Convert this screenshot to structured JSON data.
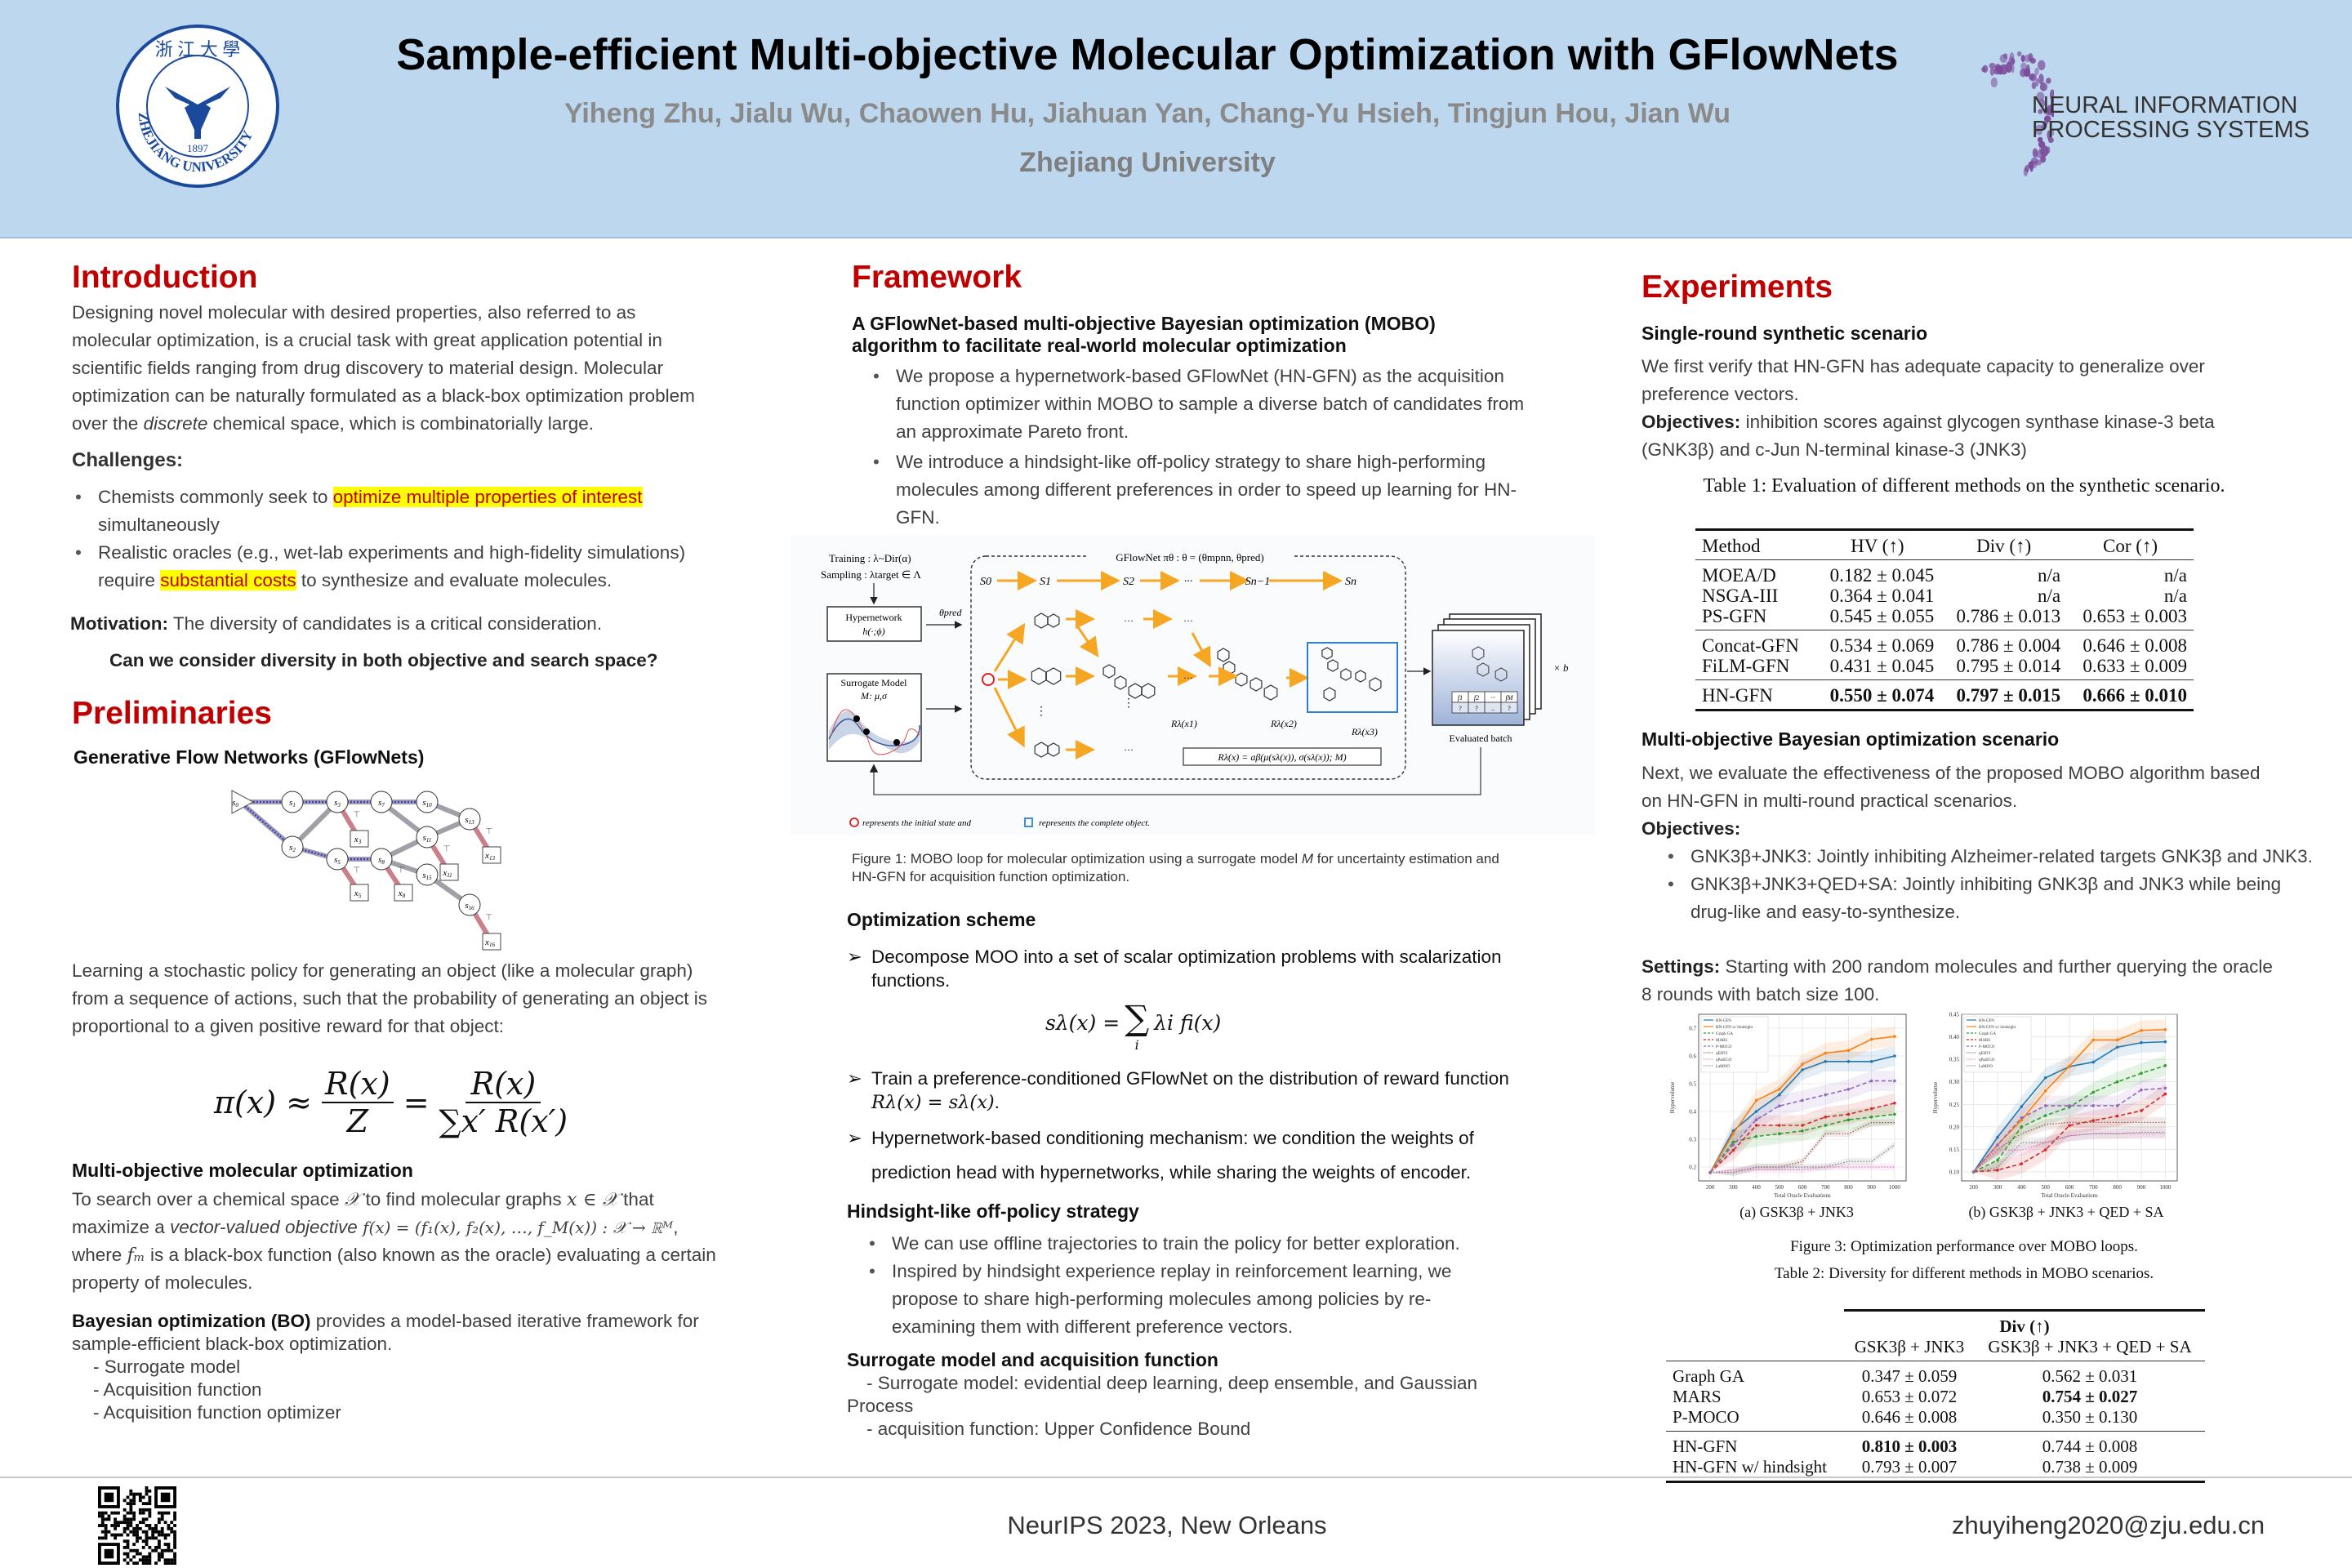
{
  "header": {
    "title": "Sample-efficient Multi-objective Molecular Optimization with GFlowNets",
    "authors": "Yiheng Zhu, Jialu Wu, Chaowen Hu, Jiahuan Yan, Chang-Yu Hsieh, Tingjun Hou, Jian Wu",
    "affiliation": "Zhejiang University",
    "left_logo": {
      "text": "ZHEJIANG UNIVERSITY",
      "year": "1897",
      "color": "#1b4a9c"
    },
    "right_logo": {
      "line1": "NEURAL INFORMATION",
      "line2": "PROCESSING SYSTEMS",
      "color": "#7b4c9a"
    },
    "background": "#bdd7ee"
  },
  "colors": {
    "section_heading": "#c00000",
    "highlight": "#ffff00"
  },
  "introduction": {
    "heading": "Introduction",
    "p1_a": "Designing novel molecular with desired properties, also referred to as molecular optimization, is a crucial task with great application potential in scientific fields ranging from drug discovery to material design. Molecular optimization can be naturally formulated as a black-box optimization problem over the ",
    "p1_em": "discrete",
    "p1_b": " chemical space, which is combinatorially large.",
    "challenges_label": "Challenges:",
    "bullet1_a": "Chemists commonly seek to ",
    "bullet1_hl": "optimize multiple properties of interest",
    "bullet1_b": " simultaneously",
    "bullet2_a": "Realistic oracles (e.g., wet-lab experiments and high-fidelity simulations) require ",
    "bullet2_hl": "substantial costs",
    "bullet2_b": " to synthesize and evaluate molecules.",
    "motivation_label": "Motivation:",
    "motivation_text": " The diversity of candidates is a critical consideration.",
    "question": "Can we consider diversity in both objective and search space?"
  },
  "preliminaries": {
    "heading": "Preliminaries",
    "gfn_heading": "Generative Flow Networks (GFlowNets)",
    "diagram": {
      "states": [
        "s0",
        "s1",
        "s2",
        "s3",
        "s5",
        "s7",
        "s8",
        "s10",
        "s11",
        "s13",
        "s15",
        "s16"
      ],
      "terminals": [
        "x3",
        "x5",
        "x8",
        "x11",
        "x13",
        "x16"
      ],
      "terminal_mark": "⊤"
    },
    "gfn_text": "Learning a stochastic policy for generating an object (like a molecular graph) from a sequence of actions, such that the probability of generating an object is proportional to a given positive reward for that object:",
    "equation": {
      "lhs": "π(x) ≈",
      "frac1_num": "R(x)",
      "frac1_den": "Z",
      "eq": "=",
      "frac2_num": "R(x)",
      "frac2_den": "∑x′ R(x′)"
    },
    "moo_heading": "Multi-objective molecular optimization",
    "moo_a": "To search over a chemical space ",
    "moo_m1": "𝒳",
    "moo_b": " to find molecular graphs ",
    "moo_m2": "x ∈ 𝒳",
    "moo_c": " that maximize a ",
    "moo_em": "vector-valued objective",
    "moo_m3": " f(x) = (f₁(x), f₂(x), …, f_M(x)) : 𝒳 → ℝᴹ",
    "moo_d": ", where ",
    "moo_m4": "fₘ",
    "moo_e": " is a black-box function (also known as the oracle) evaluating a certain property of molecules.",
    "bo_bold": "Bayesian optimization (BO)",
    "bo_text": " provides a model-based iterative framework for sample-efficient black-box optimization.",
    "bo_items": [
      "- Surrogate model",
      "- Acquisition function",
      "- Acquisition function optimizer"
    ]
  },
  "framework": {
    "heading": "Framework",
    "subheading": "A GFlowNet-based multi-objective Bayesian optimization (MOBO) algorithm to facilitate real-world molecular optimization",
    "bullets": [
      "We propose a hypernetwork-based GFlowNet (HN-GFN) as the acquisition function optimizer within MOBO to sample a diverse batch of candidates from an approximate Pareto front.",
      "We introduce a hindsight-like off-policy strategy to share high-performing molecules among different preferences in order to speed up learning for HN-GFN."
    ],
    "figure": {
      "training": "Training : λ~Dir(α)",
      "sampling": "Sampling : λtarget ∈ Λ",
      "hypernetwork": "Hypernetwork",
      "hypernetwork_fn": "h(·;ϕ)",
      "theta_pred": "θpred",
      "surrogate": "Surrogate Model",
      "surrogate_params": "M: μ,σ",
      "gflownet": "GFlowNet πθ : θ = (θmpnn, θpred)",
      "states": [
        "S0",
        "S1",
        "S2",
        "···",
        "Sn−1",
        "Sn"
      ],
      "rewards": [
        "Rλ(x1)",
        "Rλ(x2)",
        "Rλ(x3)"
      ],
      "reward_formula": "Rλ(x) = aβ(μ(sλ(x)), σ(sλ(x)); M)",
      "times_b": "× b",
      "evaluated_batch": "Evaluated batch",
      "batch_header": [
        "f1",
        "f2",
        "···",
        "fM"
      ],
      "batch_values": [
        "?",
        "?",
        "..",
        "?"
      ],
      "dots": "···",
      "vdots": "⋮",
      "legend_a": "represents the initial state and",
      "legend_b": "represents the complete object.",
      "initial_color": "#e02020",
      "complete_color": "#2f7fd0",
      "arrow_color": "#f5a623"
    },
    "caption_a": "Figure 1: MOBO loop for molecular optimization using a surrogate model ",
    "caption_m": "M",
    "caption_b": " for uncertainty estimation and HN-GFN for acquisition function optimization.",
    "opt_heading": "Optimization scheme",
    "opt1": "Decompose MOO into a set of scalar optimization problems with scalarization functions.",
    "opt_eq_lhs": "sλ(x) =",
    "opt_eq_sum": "∑",
    "opt_eq_idx": "i",
    "opt_eq_rhs": "λi fi(x)",
    "opt2_a": "Train a preference-conditioned GFlowNet on the distribution of reward function ",
    "opt2_m": "Rλ(x) = sλ(x)",
    "opt2_b": ".",
    "opt3": "Hypernetwork-based conditioning mechanism: we condition the weights of prediction head with hypernetworks, while sharing the weights of encoder.",
    "hind_heading": "Hindsight-like off-policy strategy",
    "hind_bullets": [
      "We can use offline trajectories to train the policy for better exploration.",
      "Inspired by hindsight experience replay in reinforcement learning, we propose to share high-performing molecules among policies by re-examining them with different preference vectors."
    ],
    "sur_heading": "Surrogate model and acquisition function",
    "sur1": "- Surrogate model: evidential deep learning, deep ensemble, and Gaussian Process",
    "sur2": "- acquisition function: Upper Confidence Bound"
  },
  "experiments": {
    "heading": "Experiments",
    "single_heading": "Single-round synthetic scenario",
    "single_text": "We first verify that HN-GFN has adequate capacity to generalize over preference vectors.",
    "objectives_label": "Objectives:",
    "objectives_text": " inhibition scores against glycogen synthase kinase-3 beta (GNK3β) and c-Jun N-terminal kinase-3 (JNK3)",
    "table1": {
      "caption": "Table 1: Evaluation of different methods on the synthetic scenario.",
      "columns": [
        "Method",
        "HV (↑)",
        "Div (↑)",
        "Cor (↑)"
      ],
      "groups": [
        [
          [
            "MOEA/D",
            "0.182 ± 0.045",
            "n/a",
            "n/a"
          ],
          [
            "NSGA-III",
            "0.364 ± 0.041",
            "n/a",
            "n/a"
          ],
          [
            "PS-GFN",
            "0.545 ± 0.055",
            "0.786 ± 0.013",
            "0.653 ± 0.003"
          ]
        ],
        [
          [
            "Concat-GFN",
            "0.534 ± 0.069",
            "0.786 ± 0.004",
            "0.646 ± 0.008"
          ],
          [
            "FiLM-GFN",
            "0.431 ± 0.045",
            "0.795 ± 0.014",
            "0.633 ± 0.009"
          ]
        ],
        [
          [
            "HN-GFN",
            "0.550 ± 0.074",
            "0.797 ± 0.015",
            "0.666 ± 0.010"
          ]
        ]
      ],
      "bold_row": "HN-GFN"
    },
    "mobo_heading": "Multi-objective Bayesian optimization scenario",
    "mobo_text": "Next, we evaluate the effectiveness of the proposed MOBO algorithm based on HN-GFN in multi-round practical scenarios.",
    "mobo_objectives_label": "Objectives:",
    "mobo_bullets": [
      "GNK3β+JNK3: Jointly inhibiting Alzheimer-related targets GNK3β and JNK3.",
      "GNK3β+JNK3+QED+SA: Jointly inhibiting GNK3β and JNK3 while being drug-like and easy-to-synthesize."
    ],
    "settings_label": "Settings:",
    "settings_text": " Starting with 200 random molecules and further querying the oracle 8 rounds with batch size 100.",
    "fig3_caption": "Figure 3: Optimization performance over MOBO loops.",
    "table2": {
      "caption": "Table 2: Diversity for different methods in MOBO scenarios.",
      "group_header": "Div (↑)",
      "columns": [
        "",
        "GSK3β + JNK3",
        "GSK3β + JNK3 + QED + SA"
      ],
      "groups": [
        [
          [
            "Graph GA",
            "0.347 ± 0.059",
            "0.562 ± 0.031"
          ],
          [
            "MARS",
            "0.653 ± 0.072",
            "0.754 ± 0.027"
          ],
          [
            "P-MOCO",
            "0.646 ± 0.008",
            "0.350 ± 0.130"
          ]
        ],
        [
          [
            "HN-GFN",
            "0.810 ± 0.003",
            "0.744 ± 0.008"
          ],
          [
            "HN-GFN w/ hindsight",
            "0.793 ± 0.007",
            "0.738 ± 0.009"
          ]
        ]
      ],
      "bold_cells": [
        [
          "MARS",
          2
        ],
        [
          "HN-GFN",
          1
        ]
      ]
    }
  },
  "chart_data": [
    {
      "type": "line",
      "subcaption": "(a) GSK3β + JNK3",
      "xlabel": "Total Oracle Evaluations",
      "ylabel": "Hypervolume",
      "x": [
        200,
        300,
        400,
        500,
        600,
        700,
        800,
        900,
        1000
      ],
      "xticks": [
        200,
        300,
        400,
        500,
        600,
        700,
        800,
        900,
        1000
      ],
      "yticks": [
        0.2,
        0.3,
        0.4,
        0.5,
        0.6,
        0.7
      ],
      "ylim": [
        0.15,
        0.75
      ],
      "grid": true,
      "legend": "top-left",
      "series": [
        {
          "name": "HN-GFN",
          "color": "#1f77b4",
          "style": "solid",
          "values": [
            0.18,
            0.33,
            0.4,
            0.46,
            0.55,
            0.58,
            0.58,
            0.58,
            0.6
          ]
        },
        {
          "name": "HN-GFN w/ hindsight",
          "color": "#ff7f0e",
          "style": "solid",
          "values": [
            0.18,
            0.32,
            0.44,
            0.48,
            0.57,
            0.61,
            0.62,
            0.66,
            0.67
          ]
        },
        {
          "name": "Graph GA",
          "color": "#2ca02c",
          "style": "dashed",
          "values": [
            0.18,
            0.29,
            0.31,
            0.32,
            0.33,
            0.35,
            0.37,
            0.38,
            0.39
          ]
        },
        {
          "name": "MARS",
          "color": "#d62728",
          "style": "dashed",
          "values": [
            0.18,
            0.26,
            0.35,
            0.35,
            0.35,
            0.38,
            0.39,
            0.41,
            0.43
          ]
        },
        {
          "name": "P-MOCO",
          "color": "#9467bd",
          "style": "dashed",
          "values": [
            0.18,
            0.28,
            0.37,
            0.42,
            0.44,
            0.46,
            0.48,
            0.51,
            0.51
          ]
        },
        {
          "name": "qEHVI",
          "color": "#8c564b",
          "style": "dotted",
          "values": [
            0.18,
            0.18,
            0.2,
            0.2,
            0.22,
            0.32,
            0.32,
            0.36,
            0.36
          ]
        },
        {
          "name": "qParEGO",
          "color": "#e377c2",
          "style": "dotted",
          "values": [
            0.18,
            0.19,
            0.19,
            0.19,
            0.19,
            0.2,
            0.2,
            0.2,
            0.2
          ]
        },
        {
          "name": "LaMOO",
          "color": "#7f7f7f",
          "style": "dotted",
          "values": [
            0.18,
            0.18,
            0.2,
            0.2,
            0.2,
            0.2,
            0.22,
            0.22,
            0.28
          ]
        }
      ]
    },
    {
      "type": "line",
      "subcaption": "(b) GSK3β + JNK3 + QED + SA",
      "xlabel": "Total Oracle Evaluations",
      "ylabel": "Hypervolume",
      "x": [
        200,
        300,
        400,
        500,
        600,
        700,
        800,
        900,
        1000
      ],
      "xticks": [
        200,
        300,
        400,
        500,
        600,
        700,
        800,
        900,
        1000
      ],
      "yticks": [
        0.1,
        0.15,
        0.2,
        0.25,
        0.3,
        0.35,
        0.4,
        0.45
      ],
      "ylim": [
        0.08,
        0.45
      ],
      "grid": true,
      "legend": "top-left",
      "series": [
        {
          "name": "HN-GFN",
          "color": "#1f77b4",
          "style": "solid",
          "values": [
            0.1,
            0.177,
            0.245,
            0.309,
            0.334,
            0.344,
            0.377,
            0.387,
            0.389
          ]
        },
        {
          "name": "HN-GFN w/ hindsight",
          "color": "#ff7f0e",
          "style": "solid",
          "values": [
            0.1,
            0.16,
            0.215,
            0.28,
            0.335,
            0.393,
            0.393,
            0.414,
            0.416
          ]
        },
        {
          "name": "Graph GA",
          "color": "#2ca02c",
          "style": "dashed",
          "values": [
            0.1,
            0.126,
            0.2,
            0.225,
            0.244,
            0.277,
            0.3,
            0.319,
            0.336
          ]
        },
        {
          "name": "MARS",
          "color": "#d62728",
          "style": "dashed",
          "values": [
            0.1,
            0.104,
            0.118,
            0.149,
            0.203,
            0.214,
            0.224,
            0.236,
            0.273
          ]
        },
        {
          "name": "P-MOCO",
          "color": "#9467bd",
          "style": "dashed",
          "values": [
            0.1,
            0.16,
            0.22,
            0.247,
            0.247,
            0.247,
            0.247,
            0.282,
            0.286
          ]
        },
        {
          "name": "qEHVI",
          "color": "#8c564b",
          "style": "dotted",
          "values": [
            0.1,
            0.15,
            0.185,
            0.205,
            0.21,
            0.21,
            0.21,
            0.21,
            0.21
          ]
        },
        {
          "name": "qParEGO",
          "color": "#e377c2",
          "style": "dotted",
          "values": [
            0.1,
            0.148,
            0.148,
            0.165,
            0.18,
            0.185,
            0.185,
            0.185,
            0.185
          ]
        },
        {
          "name": "LaMOO",
          "color": "#7f7f7f",
          "style": "dotted",
          "values": [
            0.1,
            0.11,
            0.165,
            0.165,
            0.18,
            0.185,
            0.185,
            0.188,
            0.188
          ]
        }
      ]
    }
  ],
  "footer": {
    "venue": "NeurIPS 2023, New Orleans",
    "email": "zhuyiheng2020@zju.edu.cn"
  }
}
